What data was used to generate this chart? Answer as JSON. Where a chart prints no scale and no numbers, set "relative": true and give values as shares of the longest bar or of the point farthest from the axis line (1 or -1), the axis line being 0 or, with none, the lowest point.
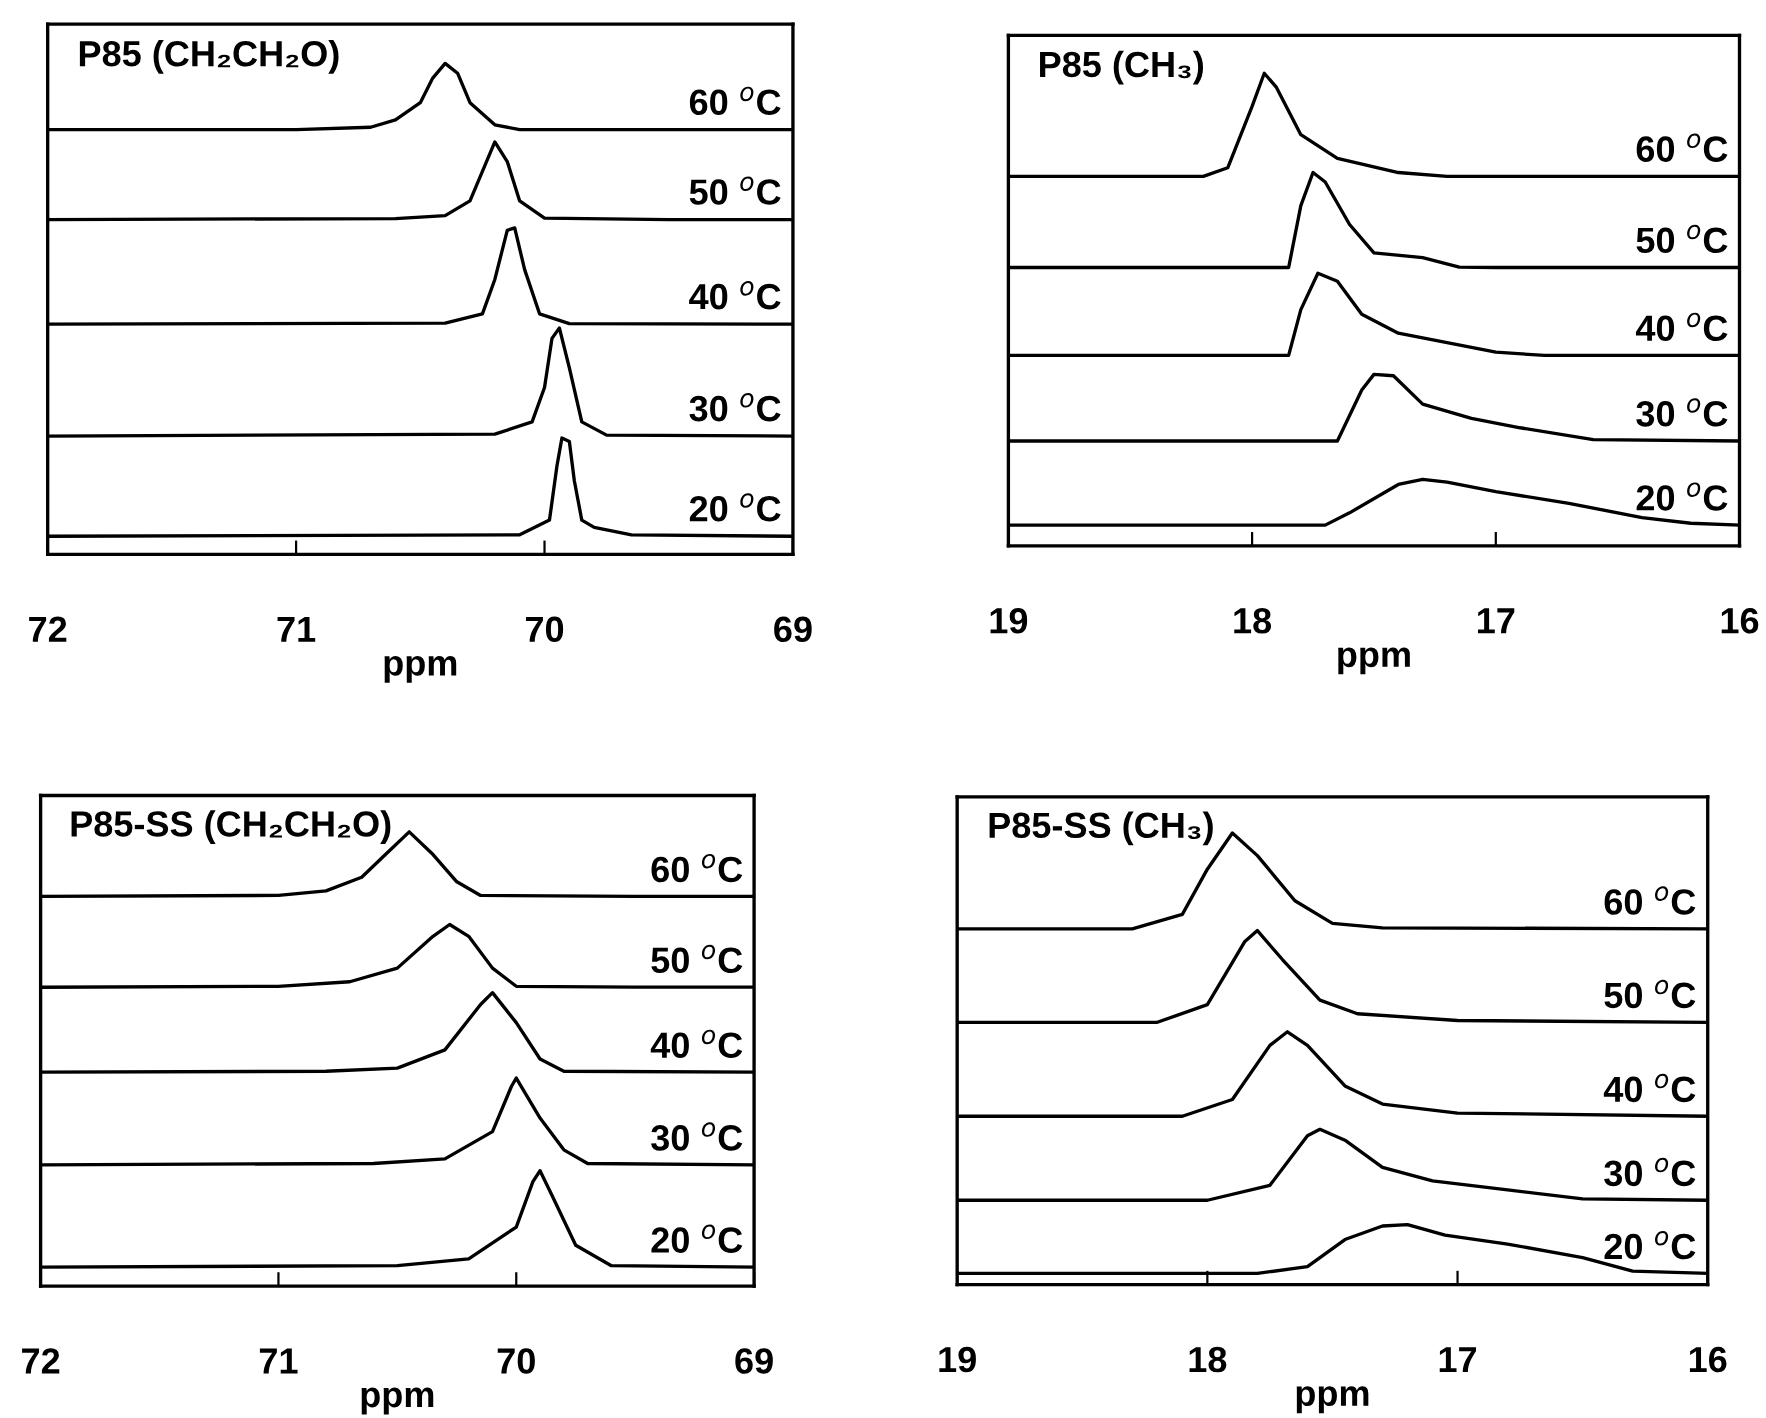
{
  "chart_data": [
    {
      "type": "line",
      "title": "P85 (CH₂CH₂O)",
      "xlabel": "ppm",
      "relative": true,
      "xlim": [
        72,
        69
      ],
      "xticks": [
        72,
        71,
        70,
        69
      ],
      "series": [
        {
          "name": "60 $^{o}$C",
          "color": "#000000",
          "x": [
            72,
            71,
            70.7,
            70.6,
            70.5,
            70.45,
            70.4,
            70.35,
            70.3,
            70.2,
            70.1,
            69.5,
            69
          ],
          "values": [
            0.865,
            0.865,
            0.87,
            0.885,
            0.92,
            0.97,
            1.0,
            0.98,
            0.92,
            0.875,
            0.865,
            0.865,
            0.865
          ]
        },
        {
          "name": "50 $^{o}$C",
          "color": "#000000",
          "x": [
            72,
            70.6,
            70.4,
            70.3,
            70.25,
            70.2,
            70.15,
            70.1,
            70.0,
            69.5,
            69
          ],
          "values": [
            0.682,
            0.684,
            0.69,
            0.72,
            0.78,
            0.84,
            0.8,
            0.72,
            0.685,
            0.682,
            0.682
          ]
        },
        {
          "name": "40 $^{o}$C",
          "color": "#000000",
          "x": [
            72,
            70.4,
            70.25,
            70.2,
            70.15,
            70.12,
            70.08,
            70.02,
            69.9,
            69
          ],
          "values": [
            0.469,
            0.471,
            0.49,
            0.56,
            0.66,
            0.665,
            0.58,
            0.49,
            0.47,
            0.469
          ]
        },
        {
          "name": "30 $^{o}$C",
          "color": "#000000",
          "x": [
            72,
            70.2,
            70.05,
            70.0,
            69.97,
            69.94,
            69.9,
            69.85,
            69.75,
            69
          ],
          "values": [
            0.241,
            0.245,
            0.27,
            0.34,
            0.44,
            0.461,
            0.38,
            0.27,
            0.243,
            0.241
          ]
        },
        {
          "name": "20 $^{o}$C",
          "color": "#000000",
          "x": [
            72,
            70.1,
            69.98,
            69.95,
            69.93,
            69.9,
            69.88,
            69.85,
            69.8,
            69.65,
            69
          ],
          "values": [
            0.037,
            0.04,
            0.07,
            0.18,
            0.237,
            0.23,
            0.15,
            0.07,
            0.055,
            0.04,
            0.037
          ]
        }
      ]
    },
    {
      "type": "line",
      "title": "P85 (CH₃)",
      "xlabel": "ppm",
      "relative": true,
      "xlim": [
        19,
        16
      ],
      "xticks": [
        19,
        18,
        17,
        16
      ],
      "series": [
        {
          "name": "60 $^{o}$C",
          "color": "#000000",
          "x": [
            19,
            18.2,
            18.1,
            18.0,
            17.95,
            17.9,
            17.8,
            17.65,
            17.4,
            17.2,
            16
          ],
          "values": [
            0.782,
            0.782,
            0.8,
            0.93,
            1.0,
            0.97,
            0.87,
            0.82,
            0.79,
            0.782,
            0.782
          ]
        },
        {
          "name": "50 $^{o}$C",
          "color": "#000000",
          "x": [
            19,
            17.85,
            17.8,
            17.75,
            17.7,
            17.6,
            17.5,
            17.3,
            17.15,
            17.0,
            16
          ],
          "values": [
            0.589,
            0.589,
            0.72,
            0.79,
            0.77,
            0.68,
            0.62,
            0.61,
            0.59,
            0.589,
            0.589
          ]
        },
        {
          "name": "40 $^{o}$C",
          "color": "#000000",
          "x": [
            19,
            17.85,
            17.8,
            17.73,
            17.65,
            17.55,
            17.4,
            17.2,
            17.0,
            16.8,
            16
          ],
          "values": [
            0.403,
            0.403,
            0.5,
            0.577,
            0.56,
            0.49,
            0.45,
            0.43,
            0.41,
            0.403,
            0.403
          ]
        },
        {
          "name": "30 $^{o}$C",
          "color": "#000000",
          "x": [
            19,
            17.65,
            17.55,
            17.5,
            17.42,
            17.3,
            17.1,
            16.9,
            16.6,
            16
          ],
          "values": [
            0.222,
            0.222,
            0.33,
            0.363,
            0.36,
            0.3,
            0.27,
            0.25,
            0.225,
            0.222
          ]
        },
        {
          "name": "20 $^{o}$C",
          "color": "#000000",
          "x": [
            19,
            17.7,
            17.6,
            17.4,
            17.3,
            17.2,
            17.0,
            16.7,
            16.4,
            16.2,
            16
          ],
          "values": [
            0.044,
            0.044,
            0.07,
            0.13,
            0.141,
            0.135,
            0.115,
            0.09,
            0.06,
            0.048,
            0.044
          ]
        }
      ]
    },
    {
      "type": "line",
      "title": "P85-SS (CH₂CH₂O)",
      "xlabel": "ppm",
      "relative": true,
      "xlim": [
        72,
        69
      ],
      "xticks": [
        72,
        71,
        70,
        69
      ],
      "series": [
        {
          "name": "60 $^{o}$C",
          "color": "#000000",
          "x": [
            72,
            71.0,
            70.8,
            70.65,
            70.55,
            70.45,
            70.35,
            70.25,
            70.15,
            69.5,
            69
          ],
          "values": [
            0.858,
            0.86,
            0.87,
            0.9,
            0.95,
            1.0,
            0.95,
            0.89,
            0.86,
            0.858,
            0.858
          ]
        },
        {
          "name": "50 $^{o}$C",
          "color": "#000000",
          "x": [
            72,
            71.0,
            70.7,
            70.5,
            70.35,
            70.28,
            70.2,
            70.1,
            70.0,
            69.5,
            69
          ],
          "values": [
            0.658,
            0.66,
            0.67,
            0.7,
            0.77,
            0.796,
            0.77,
            0.7,
            0.66,
            0.658,
            0.658
          ]
        },
        {
          "name": "40 $^{o}$C",
          "color": "#000000",
          "x": [
            72,
            70.8,
            70.5,
            70.3,
            70.15,
            70.1,
            70.0,
            69.9,
            69.8,
            69
          ],
          "values": [
            0.471,
            0.473,
            0.48,
            0.52,
            0.62,
            0.646,
            0.58,
            0.5,
            0.473,
            0.471
          ]
        },
        {
          "name": "30 $^{o}$C",
          "color": "#000000",
          "x": [
            72,
            70.6,
            70.3,
            70.1,
            70.02,
            70.0,
            69.9,
            69.8,
            69.7,
            69
          ],
          "values": [
            0.267,
            0.27,
            0.28,
            0.34,
            0.44,
            0.458,
            0.37,
            0.3,
            0.27,
            0.267
          ]
        },
        {
          "name": "20 $^{o}$C",
          "color": "#000000",
          "x": [
            72,
            70.5,
            70.2,
            70.0,
            69.93,
            69.9,
            69.85,
            69.75,
            69.6,
            69
          ],
          "values": [
            0.042,
            0.045,
            0.06,
            0.13,
            0.23,
            0.254,
            0.2,
            0.09,
            0.045,
            0.042
          ]
        }
      ]
    },
    {
      "type": "line",
      "title": "P85-SS (CH₃)",
      "xlabel": "ppm",
      "relative": true,
      "xlim": [
        19,
        16
      ],
      "xticks": [
        19,
        18,
        17,
        16
      ],
      "series": [
        {
          "name": "60 $^{o}$C",
          "color": "#000000",
          "x": [
            19,
            18.3,
            18.1,
            18.0,
            17.9,
            17.8,
            17.65,
            17.5,
            17.3,
            16
          ],
          "values": [
            0.788,
            0.788,
            0.82,
            0.92,
            1.0,
            0.95,
            0.85,
            0.8,
            0.79,
            0.788
          ]
        },
        {
          "name": "50 $^{o}$C",
          "color": "#000000",
          "x": [
            19,
            18.2,
            18.0,
            17.85,
            17.8,
            17.7,
            17.55,
            17.4,
            17.0,
            16
          ],
          "values": [
            0.581,
            0.581,
            0.62,
            0.76,
            0.784,
            0.72,
            0.63,
            0.6,
            0.585,
            0.581
          ]
        },
        {
          "name": "40 $^{o}$C",
          "color": "#000000",
          "x": [
            19,
            18.1,
            17.9,
            17.75,
            17.68,
            17.6,
            17.45,
            17.3,
            17.0,
            16
          ],
          "values": [
            0.373,
            0.373,
            0.41,
            0.53,
            0.56,
            0.53,
            0.44,
            0.4,
            0.38,
            0.373
          ]
        },
        {
          "name": "30 $^{o}$C",
          "color": "#000000",
          "x": [
            19,
            18.0,
            17.75,
            17.6,
            17.55,
            17.45,
            17.3,
            17.1,
            16.8,
            16.5,
            16
          ],
          "values": [
            0.187,
            0.187,
            0.22,
            0.33,
            0.344,
            0.32,
            0.26,
            0.23,
            0.21,
            0.19,
            0.187
          ]
        },
        {
          "name": "20 $^{o}$C",
          "color": "#000000",
          "x": [
            19,
            17.8,
            17.6,
            17.45,
            17.3,
            17.2,
            17.05,
            16.8,
            16.5,
            16.3,
            16
          ],
          "values": [
            0.025,
            0.025,
            0.04,
            0.1,
            0.13,
            0.133,
            0.11,
            0.09,
            0.06,
            0.03,
            0.025
          ]
        }
      ]
    }
  ]
}
